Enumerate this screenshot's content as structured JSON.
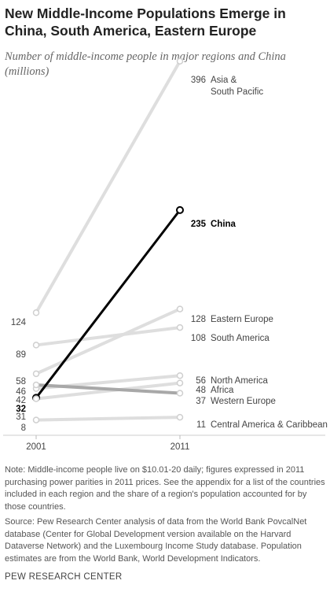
{
  "title": "New Middle-Income Populations Emerge in China, South America, Eastern Europe",
  "subtitle": "Number of middle-income people in major regions and China (millions)",
  "note": "Note: Middle-income people live on $10.01-20 daily; figures expressed in 2011 purchasing power parities in 2011 prices. See the appendix for a list of the countries included in each region and the share of a region's population accounted for by those countries.",
  "source": "Source: Pew Research Center analysis of data from the World Bank PovcalNet database (Center for Global Development version available on the Harvard Dataverse Network) and the Luxembourg Income Study database. Population estimates are from the World Bank, World Development Indicators.",
  "footer": "PEW RESEARCH CENTER",
  "chart_data": {
    "type": "line",
    "x": [
      "2001",
      "2011"
    ],
    "series": [
      {
        "name": "Asia & South Pacific",
        "values": [
          124,
          396
        ],
        "highlight": false,
        "right_label_lines": [
          "Asia &",
          "South Pacific"
        ]
      },
      {
        "name": "China",
        "values": [
          32,
          235
        ],
        "highlight": true,
        "right_label_lines": [
          "China"
        ]
      },
      {
        "name": "Eastern Europe",
        "values": [
          58,
          128
        ],
        "highlight": false,
        "right_label_lines": [
          "Eastern Europe"
        ]
      },
      {
        "name": "South America",
        "values": [
          89,
          108
        ],
        "highlight": false,
        "right_label_lines": [
          "South America"
        ]
      },
      {
        "name": "North America",
        "values": [
          42,
          56
        ],
        "highlight": false,
        "right_label_lines": [
          "North America"
        ]
      },
      {
        "name": "Africa",
        "values": [
          31,
          48
        ],
        "highlight": false,
        "right_label_lines": [
          "Africa"
        ]
      },
      {
        "name": "Western Europe",
        "values": [
          46,
          37
        ],
        "highlight": false,
        "emphasis": "medium",
        "right_label_lines": [
          "Western Europe"
        ]
      },
      {
        "name": "Central America & Caribbean",
        "values": [
          8,
          11
        ],
        "highlight": false,
        "right_label_lines": [
          "Central America & Caribbean"
        ]
      }
    ],
    "left_labels": [
      "124",
      "89",
      "58",
      "46",
      "42",
      "32",
      "31",
      "8"
    ],
    "colors": {
      "highlight": "#000000",
      "medium": "#a8a8a8",
      "muted": "#dedede"
    },
    "grid": false
  }
}
